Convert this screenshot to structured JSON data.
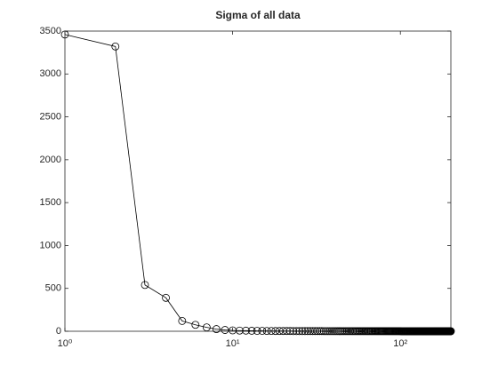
{
  "chart_data": {
    "type": "line",
    "title": "Sigma of all data",
    "x": [
      1,
      2,
      3,
      4,
      5,
      6,
      7,
      8,
      9,
      10,
      11,
      12,
      13,
      14,
      15,
      16,
      17,
      18,
      19,
      20,
      21,
      22,
      23,
      24,
      25,
      26,
      27,
      28,
      29,
      30,
      31,
      32,
      33,
      34,
      35,
      36,
      37,
      38,
      39,
      40,
      41,
      42,
      43,
      44,
      45,
      46,
      47,
      48,
      49,
      50,
      51,
      52,
      53,
      54,
      55,
      56,
      57,
      58,
      59,
      60,
      61,
      62,
      63,
      64,
      65,
      66,
      67,
      68,
      69,
      70,
      71,
      72,
      73,
      74,
      75,
      76,
      77,
      78,
      79,
      80,
      81,
      82,
      83,
      84,
      85,
      86,
      87,
      88,
      89,
      90,
      91,
      92,
      93,
      94,
      95,
      96,
      97,
      98,
      99,
      100,
      101,
      102,
      103,
      104,
      105,
      106,
      107,
      108,
      109,
      110,
      111,
      112,
      113,
      114,
      115,
      116,
      117,
      118,
      119,
      120,
      121,
      122,
      123,
      124,
      125,
      126,
      127,
      128,
      129,
      130,
      131,
      132,
      133,
      134,
      135,
      136,
      137,
      138,
      139,
      140,
      141,
      142,
      143,
      144,
      145,
      146,
      147,
      148,
      149,
      150,
      151,
      152,
      153,
      154,
      155,
      156,
      157,
      158,
      159,
      160,
      161,
      162,
      163,
      164,
      165,
      166,
      167,
      168,
      169,
      170,
      171,
      172,
      173,
      174,
      175,
      176,
      177,
      178,
      179,
      180,
      181,
      182,
      183,
      184,
      185,
      186,
      187,
      188,
      189,
      190,
      191,
      192,
      193,
      194,
      195,
      196,
      197,
      198,
      199,
      200
    ],
    "series": [
      {
        "color": "#000000",
        "values": [
          3460,
          3320,
          540,
          390,
          120,
          75,
          45,
          25,
          15,
          10,
          8,
          7,
          6,
          5,
          5,
          4,
          4,
          3,
          3,
          3,
          3,
          3,
          2,
          2,
          2,
          2,
          2,
          2,
          2,
          2,
          2,
          2,
          2,
          2,
          1,
          1,
          1,
          1,
          1,
          1,
          1,
          1,
          1,
          1,
          1,
          1,
          1,
          1,
          1,
          1,
          1,
          1,
          1,
          1,
          1,
          1,
          1,
          1,
          1,
          1,
          1,
          1,
          1,
          1,
          1,
          1,
          1,
          1,
          1,
          1,
          1,
          1,
          1,
          1,
          1,
          1,
          1,
          1,
          1,
          1,
          1,
          1,
          1,
          1,
          1,
          1,
          1,
          1,
          1,
          1,
          1,
          1,
          1,
          1,
          1,
          1,
          1,
          1,
          1,
          1,
          0,
          0,
          0,
          0,
          0,
          0,
          0,
          0,
          0,
          0,
          0,
          0,
          0,
          0,
          0,
          0,
          0,
          0,
          0,
          0,
          0,
          0,
          0,
          0,
          0,
          0,
          0,
          0,
          0,
          0,
          0,
          0,
          0,
          0,
          0,
          0,
          0,
          0,
          0,
          0,
          0,
          0,
          0,
          0,
          0,
          0,
          0,
          0,
          0,
          0,
          0,
          0,
          0,
          0,
          0,
          0,
          0,
          0,
          0,
          0,
          0,
          0,
          0,
          0,
          0,
          0,
          0,
          0,
          0,
          0,
          0,
          0,
          0,
          0,
          0,
          0,
          0,
          0,
          0,
          0,
          0,
          0,
          0,
          0,
          0,
          0,
          0,
          0,
          0,
          0,
          0,
          0,
          0,
          0,
          0,
          0,
          0,
          0,
          0,
          0
        ]
      }
    ],
    "xscale": "log",
    "xlim": [
      1,
      200
    ],
    "xticks": [
      {
        "value": 1,
        "label": "10⁰"
      },
      {
        "value": 10,
        "label": "10¹"
      },
      {
        "value": 100,
        "label": "10²"
      }
    ],
    "ylim": [
      0,
      3500
    ],
    "yticks": [
      0,
      500,
      1000,
      1500,
      2000,
      2500,
      3000,
      3500
    ]
  }
}
